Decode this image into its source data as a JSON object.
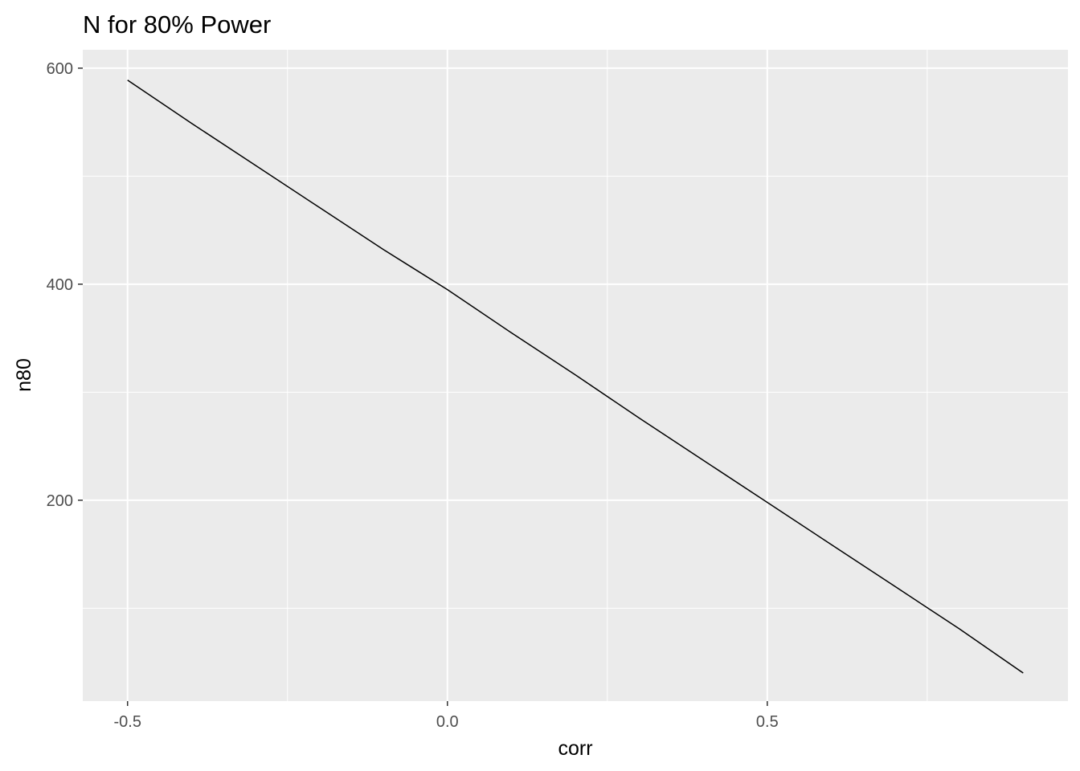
{
  "chart_data": {
    "type": "line",
    "title": "N for 80% Power",
    "xlabel": "corr",
    "ylabel": "n80",
    "xlim": [
      -0.57,
      0.97
    ],
    "ylim": [
      14,
      617
    ],
    "x_ticks": [
      {
        "value": -0.5,
        "label": "-0.5"
      },
      {
        "value": 0.0,
        "label": "0.0"
      },
      {
        "value": 0.5,
        "label": "0.5"
      }
    ],
    "x_minor": [
      -0.25,
      0.25,
      0.75
    ],
    "y_ticks": [
      {
        "value": 200,
        "label": "200"
      },
      {
        "value": 400,
        "label": "400"
      },
      {
        "value": 600,
        "label": "600"
      }
    ],
    "y_minor": [
      100,
      300,
      500
    ],
    "grid": true,
    "legend": "none",
    "series": [
      {
        "color": "#000000",
        "x": [
          -0.5,
          -0.4,
          -0.3,
          -0.2,
          -0.1,
          0.0,
          0.1,
          0.2,
          0.3,
          0.4,
          0.5,
          0.6,
          0.7,
          0.8,
          0.9
        ],
        "y": [
          589,
          549,
          510,
          471,
          432,
          395,
          355,
          316,
          276,
          237,
          198,
          159,
          120,
          81,
          40
        ]
      }
    ]
  }
}
